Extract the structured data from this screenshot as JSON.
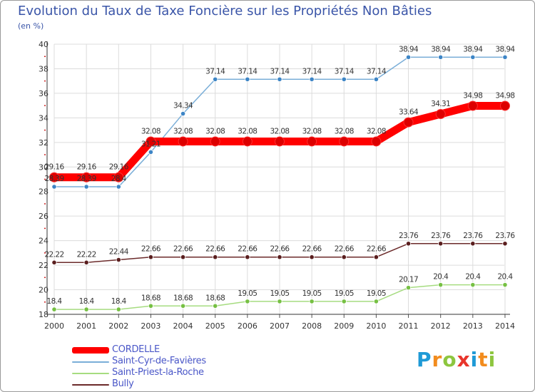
{
  "title": "Evolution du Taux de Taxe Foncière sur les Propriétés Non Bâties",
  "unit_label": "(en %)",
  "logo": {
    "letters": [
      "P",
      "r",
      "o",
      "x",
      "i",
      "t",
      "i"
    ],
    "colors": [
      "#1f9ad6",
      "#f28c1e",
      "#8dc63f",
      "#e8352b",
      "#1f9ad6",
      "#f28c1e",
      "#8dc63f"
    ]
  },
  "chart_data": {
    "type": "line",
    "title": "Evolution du Taux de Taxe Foncière sur les Propriétés Non Bâties",
    "ylabel": "(en %)",
    "xlabel": "",
    "x": [
      "2000",
      "2001",
      "2002",
      "2003",
      "2004",
      "2005",
      "2006",
      "2007",
      "2008",
      "2009",
      "2010",
      "2011",
      "2012",
      "2013",
      "2014"
    ],
    "ylim": [
      18,
      40
    ],
    "yticks": [
      "18",
      "20",
      "22",
      "24",
      "26",
      "28",
      "30",
      "32",
      "34",
      "36",
      "38",
      "40"
    ],
    "grid": true,
    "legend_position": "bottom-left",
    "series": [
      {
        "name": "CORDELLE",
        "color": "#ff0000",
        "marker": "#dd0000",
        "bold": true,
        "values": [
          29.16,
          29.16,
          29.16,
          32.08,
          32.08,
          32.08,
          32.08,
          32.08,
          32.08,
          32.08,
          32.08,
          33.64,
          34.31,
          34.98,
          34.98
        ],
        "labels": [
          "29.16",
          "29.16",
          "29.16",
          "32.08",
          "32.08",
          "32.08",
          "32.08",
          "32.08",
          "32.08",
          "32.08",
          "32.08",
          "33.64",
          "34.31",
          "34.98",
          "34.98"
        ]
      },
      {
        "name": "Saint-Cyr-de-Favières",
        "color": "#7aaed8",
        "marker": "#3d85c6",
        "bold": false,
        "values": [
          28.39,
          28.39,
          28.39,
          31.21,
          34.34,
          37.14,
          37.14,
          37.14,
          37.14,
          37.14,
          37.14,
          38.94,
          38.94,
          38.94,
          38.94
        ],
        "labels": [
          "28.39",
          "28.39",
          "28.4",
          "31.21",
          "34.34",
          "37.14",
          "37.14",
          "37.14",
          "37.14",
          "37.14",
          "37.14",
          "38.94",
          "38.94",
          "38.94",
          "38.94"
        ]
      },
      {
        "name": "Saint-Priest-la-Roche",
        "color": "#a6dc80",
        "marker": "#76c043",
        "bold": false,
        "values": [
          18.4,
          18.4,
          18.4,
          18.68,
          18.68,
          18.68,
          19.05,
          19.05,
          19.05,
          19.05,
          19.05,
          20.17,
          20.4,
          20.4,
          20.4
        ],
        "labels": [
          "18.4",
          "18.4",
          "18.4",
          "18.68",
          "18.68",
          "18.68",
          "19.05",
          "19.05",
          "19.05",
          "19.05",
          "19.05",
          "20.17",
          "20.4",
          "20.4",
          "20.4"
        ]
      },
      {
        "name": "Bully",
        "color": "#6b2a2a",
        "marker": "#5a1e1e",
        "bold": false,
        "values": [
          22.22,
          22.22,
          22.44,
          22.66,
          22.66,
          22.66,
          22.66,
          22.66,
          22.66,
          22.66,
          22.66,
          23.76,
          23.76,
          23.76,
          23.76
        ],
        "labels": [
          "22.22",
          "22.22",
          "22.44",
          "22.66",
          "22.66",
          "22.66",
          "22.66",
          "22.66",
          "22.66",
          "22.66",
          "22.66",
          "23.76",
          "23.76",
          "23.76",
          "23.76"
        ]
      }
    ]
  }
}
